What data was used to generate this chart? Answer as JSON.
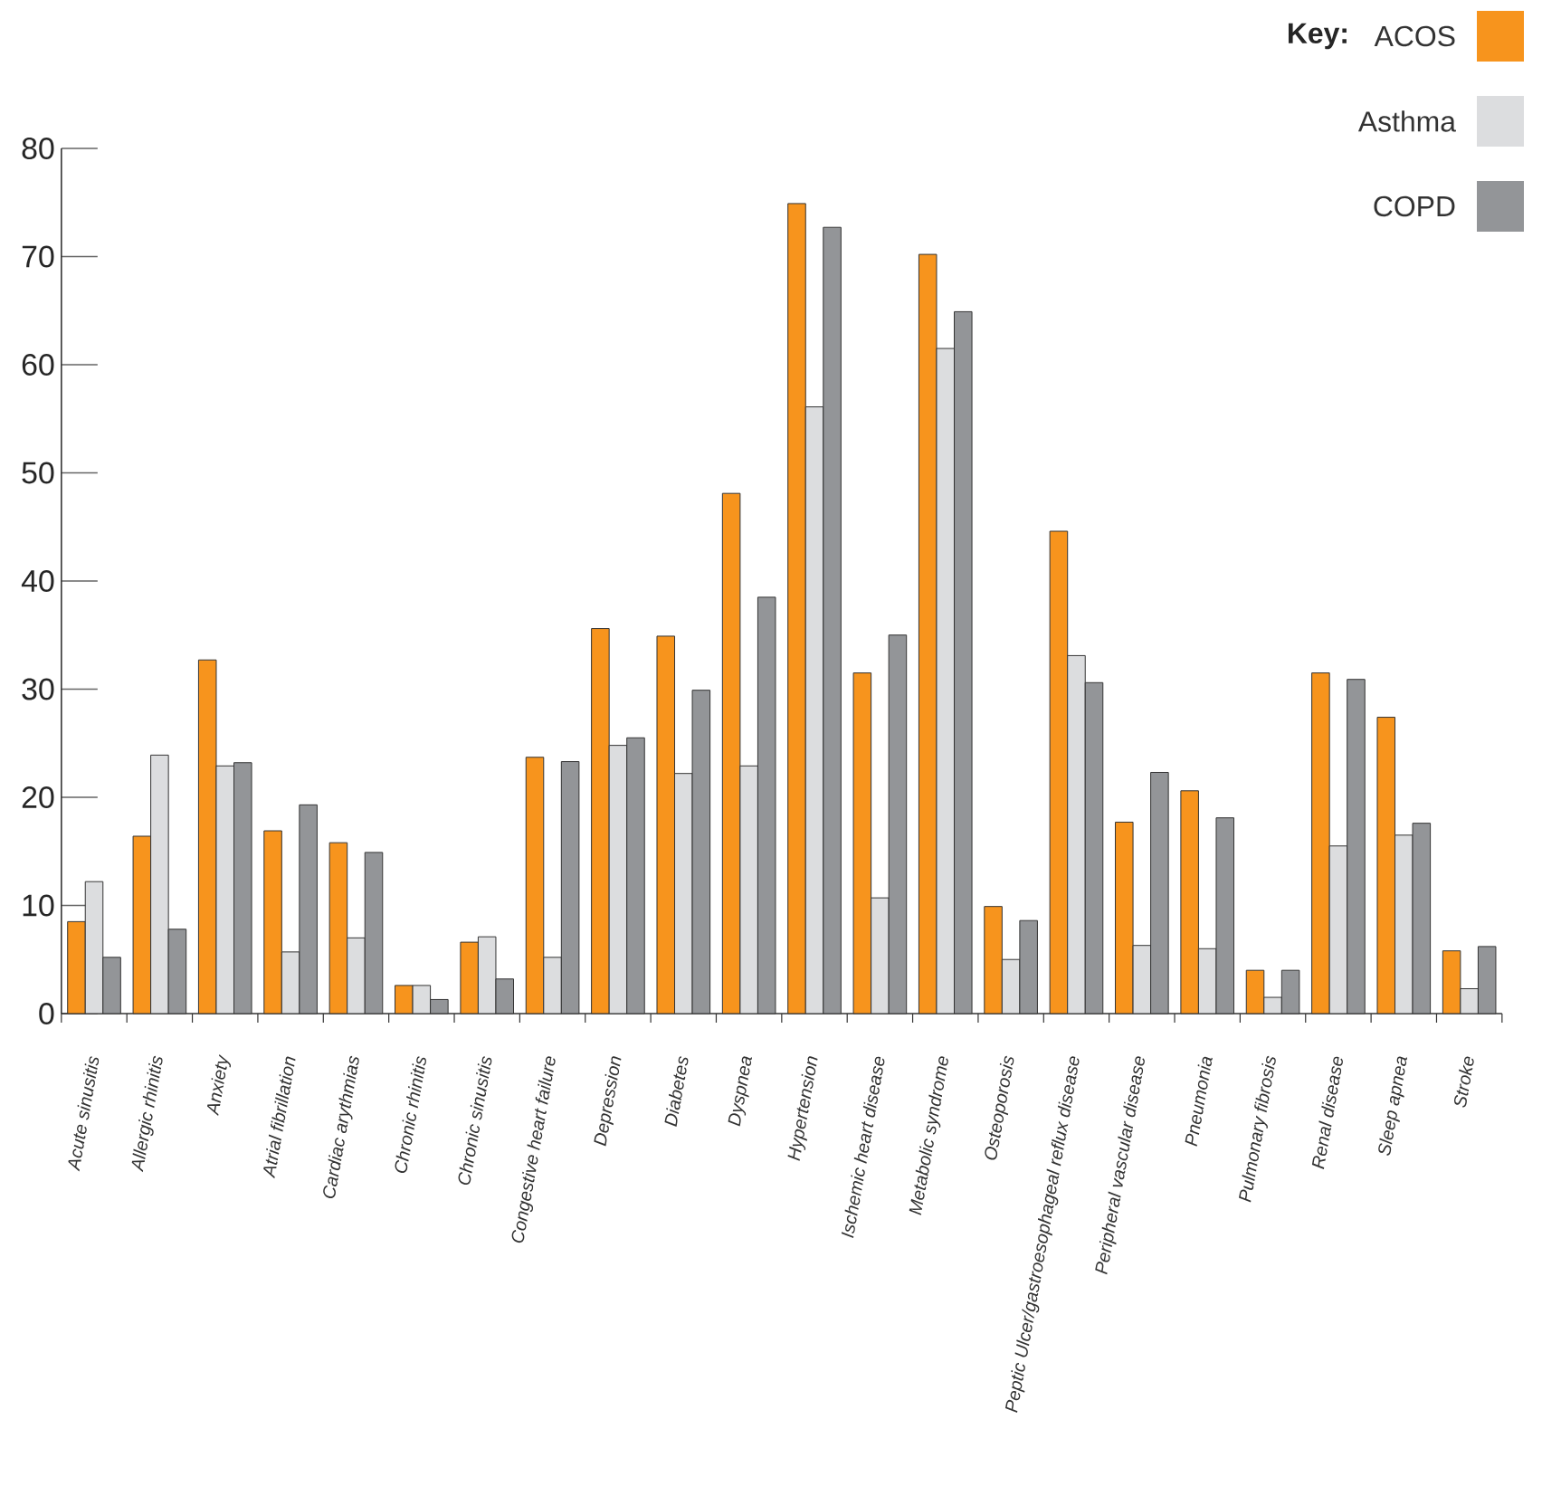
{
  "chart_data": {
    "type": "bar",
    "legend_title": "Key:",
    "legend": "top right",
    "categories": [
      "Acute sinusitis",
      "Allergic rhinitis",
      "Anxiety",
      "Atrial fibrillation",
      "Cardiac arythmias",
      "Chronic rhinitis",
      "Chronic sinusitis",
      "Congestive heart  failure",
      "Depression",
      "Diabetes",
      "Dyspnea",
      "Hypertension",
      "Ischemic heart disease",
      "Metabolic syndrome",
      "Osteoporosis",
      "Peptic Ulcer/gastroesophageal reflux disease",
      "Peripheral vascular disease",
      "Pneumonia",
      "Pulmonary fibrosis",
      "Renal disease",
      "Sleep apnea",
      "Stroke"
    ],
    "series": [
      {
        "name": "ACOS",
        "color": "#f7941d",
        "values": [
          8.5,
          16.4,
          32.7,
          16.9,
          15.8,
          2.6,
          6.6,
          23.7,
          35.6,
          34.9,
          48.1,
          74.9,
          31.5,
          70.2,
          9.9,
          44.6,
          17.7,
          20.6,
          4.0,
          31.5,
          27.4,
          5.8
        ]
      },
      {
        "name": "Asthma",
        "color": "#dcdddf",
        "values": [
          12.2,
          23.9,
          22.9,
          5.7,
          7.0,
          2.6,
          7.1,
          5.2,
          24.8,
          22.2,
          22.9,
          56.1,
          10.7,
          61.5,
          5.0,
          33.1,
          6.3,
          6.0,
          1.5,
          15.5,
          16.5,
          2.3
        ]
      },
      {
        "name": "COPD",
        "color": "#939598",
        "values": [
          5.2,
          7.8,
          23.2,
          19.3,
          14.9,
          1.3,
          3.2,
          23.3,
          25.5,
          29.9,
          38.5,
          72.7,
          35.0,
          64.9,
          8.6,
          30.6,
          22.3,
          18.1,
          4.0,
          30.9,
          17.6,
          6.2
        ]
      }
    ],
    "ylim": [
      0,
      80
    ],
    "yticks": [
      0,
      10,
      20,
      30,
      40,
      50,
      60,
      70,
      80
    ]
  }
}
